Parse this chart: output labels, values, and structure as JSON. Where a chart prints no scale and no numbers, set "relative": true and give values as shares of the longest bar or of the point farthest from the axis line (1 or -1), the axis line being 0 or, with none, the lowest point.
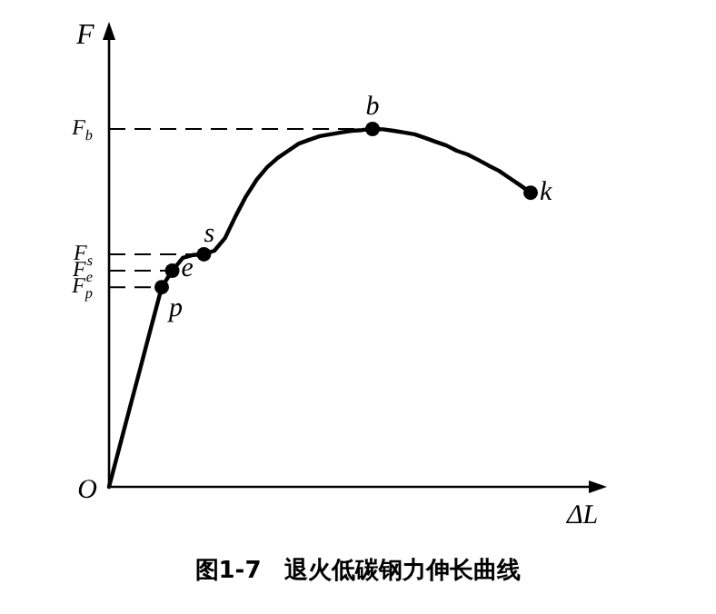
{
  "chart_data": {
    "type": "line",
    "relative": true,
    "xlabel": "ΔL",
    "ylabel": "F",
    "categories": [
      null,
      null,
      null,
      null,
      null,
      null,
      null,
      null,
      null,
      null,
      null,
      null,
      null,
      null,
      null,
      null,
      null,
      null,
      null,
      null,
      null,
      null,
      null,
      null,
      null,
      null,
      null,
      null,
      null,
      null,
      null,
      null,
      null,
      null,
      null,
      null,
      null,
      null,
      null,
      null,
      null
    ],
    "series": [
      {
        "type": "line",
        "color": "#000000",
        "values": [
          0,
          0.112,
          0.224,
          0.335,
          0.447,
          0.558,
          0.604,
          0.64,
          0.648,
          0.65,
          0.66,
          0.695,
          0.756,
          0.812,
          0.858,
          0.893,
          0.919,
          0.939,
          0.959,
          0.97,
          0.98,
          0.985,
          0.99,
          0.995,
          0.997,
          1,
          0.999,
          0.995,
          0.99,
          0.985,
          0.975,
          0.964,
          0.954,
          0.939,
          0.929,
          0.914,
          0.898,
          0.883,
          0.863,
          0.843,
          0.822
        ]
      }
    ],
    "ref_lines": [
      {
        "axis": "y",
        "value": 1,
        "label": "F$_{b}$",
        "line_style": "dashed"
      },
      {
        "axis": "y",
        "value": 0.65,
        "label": "F$_{s}$",
        "line_style": "dashed"
      },
      {
        "axis": "y",
        "value": 0.604,
        "label": "F$_{e}$",
        "line_style": "dashed"
      },
      {
        "axis": "y",
        "value": 0.558,
        "label": "F$_{p}$",
        "line_style": "dashed"
      }
    ],
    "annotations": [
      "图1-7　退火低碳钢力伸长曲线",
      "O",
      {
        "text": "p",
        "y": 0.558
      },
      {
        "text": "e",
        "y": 0.604
      },
      {
        "text": "s",
        "y": 0.65
      },
      {
        "text": "b",
        "y": 1
      },
      {
        "text": "k",
        "y": 0.822
      }
    ]
  }
}
